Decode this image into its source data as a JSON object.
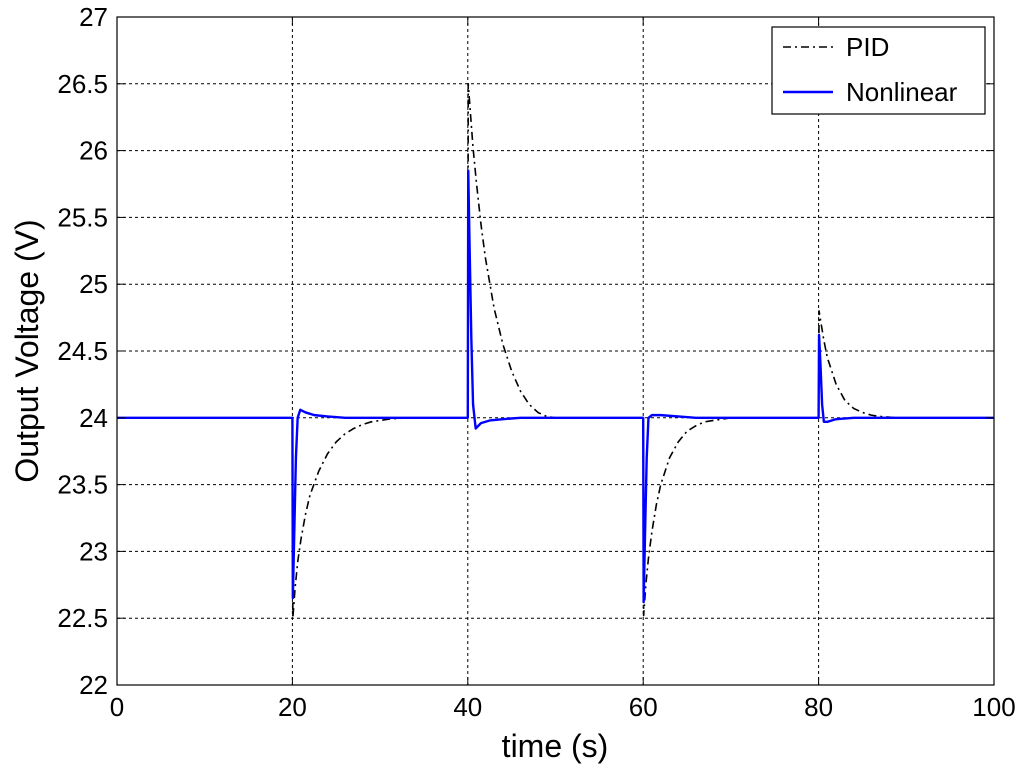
{
  "chart_data": {
    "type": "line",
    "xlabel": "time (s)",
    "ylabel": "Output Voltage (V)",
    "xlim": [
      0,
      100
    ],
    "ylim": [
      22,
      27
    ],
    "xticks": [
      "0",
      "20",
      "40",
      "60",
      "80",
      "100"
    ],
    "yticks": [
      "22",
      "22.5",
      "23",
      "23.5",
      "24",
      "24.5",
      "25",
      "25.5",
      "26",
      "26.5",
      "27"
    ],
    "grid": true,
    "legend_position": "top-right",
    "series": [
      {
        "name": "PID",
        "color": "#000000",
        "style": "dash-dot",
        "points": [
          [
            0,
            24
          ],
          [
            20,
            24
          ],
          [
            20.05,
            22.5
          ],
          [
            20.3,
            22.72
          ],
          [
            20.6,
            22.92
          ],
          [
            21,
            23.1
          ],
          [
            21.5,
            23.28
          ],
          [
            22,
            23.42
          ],
          [
            23,
            23.6
          ],
          [
            24,
            23.73
          ],
          [
            25,
            23.82
          ],
          [
            26,
            23.88
          ],
          [
            27,
            23.92
          ],
          [
            28,
            23.95
          ],
          [
            29,
            23.97
          ],
          [
            30,
            23.98
          ],
          [
            31,
            23.99
          ],
          [
            33,
            24
          ],
          [
            40,
            24
          ],
          [
            40.05,
            26.5
          ],
          [
            40.3,
            26.28
          ],
          [
            40.6,
            26.02
          ],
          [
            41,
            25.75
          ],
          [
            41.5,
            25.45
          ],
          [
            42,
            25.2
          ],
          [
            43,
            24.82
          ],
          [
            44,
            24.55
          ],
          [
            45,
            24.35
          ],
          [
            46,
            24.2
          ],
          [
            47,
            24.1
          ],
          [
            48,
            24.04
          ],
          [
            49,
            24.01
          ],
          [
            50,
            24
          ],
          [
            60,
            24
          ],
          [
            60.05,
            22.52
          ],
          [
            60.3,
            22.75
          ],
          [
            60.6,
            22.95
          ],
          [
            61,
            23.15
          ],
          [
            61.5,
            23.35
          ],
          [
            62,
            23.5
          ],
          [
            63,
            23.7
          ],
          [
            64,
            23.82
          ],
          [
            65,
            23.9
          ],
          [
            66,
            23.94
          ],
          [
            67,
            23.97
          ],
          [
            68,
            23.98
          ],
          [
            69,
            23.99
          ],
          [
            70,
            24
          ],
          [
            80,
            24
          ],
          [
            80.05,
            24.8
          ],
          [
            80.3,
            24.7
          ],
          [
            80.6,
            24.58
          ],
          [
            81,
            24.45
          ],
          [
            82,
            24.25
          ],
          [
            83,
            24.13
          ],
          [
            84,
            24.07
          ],
          [
            85,
            24.04
          ],
          [
            86,
            24.02
          ],
          [
            87,
            24.01
          ],
          [
            89,
            24
          ],
          [
            100,
            24
          ]
        ]
      },
      {
        "name": "Nonlinear",
        "color": "#0000ff",
        "style": "solid",
        "points": [
          [
            0,
            24
          ],
          [
            20,
            24
          ],
          [
            20.05,
            22.65
          ],
          [
            20.2,
            23.1
          ],
          [
            20.4,
            23.7
          ],
          [
            20.6,
            24.0
          ],
          [
            20.9,
            24.06
          ],
          [
            21.5,
            24.04
          ],
          [
            22.5,
            24.02
          ],
          [
            24,
            24.01
          ],
          [
            26,
            24
          ],
          [
            40,
            24
          ],
          [
            40.05,
            25.85
          ],
          [
            40.2,
            25.3
          ],
          [
            40.4,
            24.6
          ],
          [
            40.6,
            24.1
          ],
          [
            40.9,
            23.92
          ],
          [
            41.5,
            23.96
          ],
          [
            42.5,
            23.98
          ],
          [
            44,
            23.99
          ],
          [
            46,
            24
          ],
          [
            60,
            24
          ],
          [
            60.05,
            22.62
          ],
          [
            60.2,
            23.1
          ],
          [
            60.4,
            23.7
          ],
          [
            60.6,
            24.0
          ],
          [
            61,
            24.02
          ],
          [
            62,
            24.02
          ],
          [
            64,
            24.01
          ],
          [
            66,
            24
          ],
          [
            80,
            24
          ],
          [
            80.05,
            24.62
          ],
          [
            80.2,
            24.42
          ],
          [
            80.4,
            24.1
          ],
          [
            80.6,
            23.97
          ],
          [
            81,
            23.97
          ],
          [
            82,
            23.99
          ],
          [
            84,
            24
          ],
          [
            100,
            24
          ]
        ]
      }
    ]
  }
}
